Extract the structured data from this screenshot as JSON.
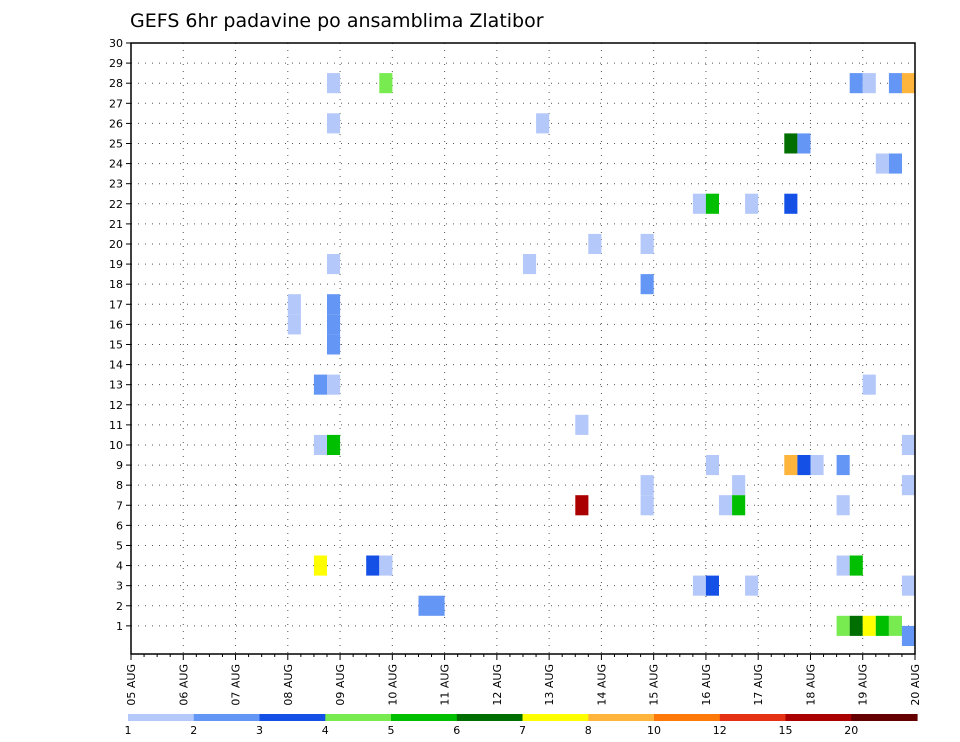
{
  "chart_data": {
    "type": "heatmap",
    "title": "GEFS 6hr padavine po ansamblima Zlatibor",
    "xlabel": "",
    "ylabel": "",
    "x_ticks": [
      "05 AUG",
      "06 AUG",
      "07 AUG",
      "08 AUG",
      "09 AUG",
      "10 AUG",
      "11 AUG",
      "12 AUG",
      "13 AUG",
      "14 AUG",
      "15 AUG",
      "16 AUG",
      "17 AUG",
      "18 AUG",
      "19 AUG",
      "20 AUG"
    ],
    "y_ticks": [
      "1",
      "2",
      "3",
      "4",
      "5",
      "6",
      "7",
      "8",
      "9",
      "10",
      "11",
      "12",
      "13",
      "14",
      "15",
      "16",
      "17",
      "18",
      "19",
      "20",
      "21",
      "22",
      "23",
      "24",
      "25",
      "26",
      "27",
      "28",
      "29",
      "30"
    ],
    "xlim": [
      0,
      60
    ],
    "ylim": [
      0,
      30
    ],
    "grid": true,
    "colorbar": {
      "labels": [
        "1",
        "2",
        "3",
        "4",
        "5",
        "6",
        "7",
        "8",
        "10",
        "12",
        "15",
        "20"
      ],
      "colors": [
        "#b4c8fa",
        "#6496f5",
        "#1450e6",
        "#78eb50",
        "#00be00",
        "#006e00",
        "#ffff00",
        "#ffb43c",
        "#ff780a",
        "#e63214",
        "#aa0000",
        "#640000"
      ]
    },
    "cells": [
      {
        "t": 15.5,
        "m": 28,
        "c": 1
      },
      {
        "t": 19.5,
        "m": 28,
        "c": 4
      },
      {
        "t": 55.5,
        "m": 28,
        "c": 2
      },
      {
        "t": 56.5,
        "m": 28,
        "c": 1
      },
      {
        "t": 58.5,
        "m": 28,
        "c": 2
      },
      {
        "t": 59.5,
        "m": 28,
        "c": 8
      },
      {
        "t": 15.5,
        "m": 26,
        "c": 1
      },
      {
        "t": 31.5,
        "m": 26,
        "c": 1
      },
      {
        "t": 50.5,
        "m": 25,
        "c": 6
      },
      {
        "t": 51.5,
        "m": 25,
        "c": 2
      },
      {
        "t": 57.5,
        "m": 24,
        "c": 1
      },
      {
        "t": 58.5,
        "m": 24,
        "c": 2
      },
      {
        "t": 43.5,
        "m": 22,
        "c": 1
      },
      {
        "t": 44.5,
        "m": 22,
        "c": 5
      },
      {
        "t": 47.5,
        "m": 22,
        "c": 1
      },
      {
        "t": 50.5,
        "m": 22,
        "c": 3
      },
      {
        "t": 35.5,
        "m": 20,
        "c": 1
      },
      {
        "t": 39.5,
        "m": 20,
        "c": 1
      },
      {
        "t": 15.5,
        "m": 19,
        "c": 1
      },
      {
        "t": 30.5,
        "m": 19,
        "c": 1
      },
      {
        "t": 39.5,
        "m": 18,
        "c": 2
      },
      {
        "t": 12.5,
        "m": 17,
        "c": 1
      },
      {
        "t": 15.5,
        "m": 17,
        "c": 2
      },
      {
        "t": 12.5,
        "m": 16,
        "c": 1
      },
      {
        "t": 15.5,
        "m": 16,
        "c": 2
      },
      {
        "t": 15.5,
        "m": 15,
        "c": 2
      },
      {
        "t": 14.5,
        "m": 13,
        "c": 2
      },
      {
        "t": 15.5,
        "m": 13,
        "c": 1
      },
      {
        "t": 56.5,
        "m": 13,
        "c": 1
      },
      {
        "t": 34.5,
        "m": 11,
        "c": 1
      },
      {
        "t": 14.5,
        "m": 10,
        "c": 1
      },
      {
        "t": 15.5,
        "m": 10,
        "c": 5
      },
      {
        "t": 59.5,
        "m": 10,
        "c": 1
      },
      {
        "t": 44.5,
        "m": 9,
        "c": 1
      },
      {
        "t": 50.5,
        "m": 9,
        "c": 8
      },
      {
        "t": 51.5,
        "m": 9,
        "c": 3
      },
      {
        "t": 52.5,
        "m": 9,
        "c": 1
      },
      {
        "t": 54.5,
        "m": 9,
        "c": 2
      },
      {
        "t": 39.5,
        "m": 8,
        "c": 1
      },
      {
        "t": 46.5,
        "m": 8,
        "c": 1
      },
      {
        "t": 59.5,
        "m": 8,
        "c": 1
      },
      {
        "t": 34.5,
        "m": 7,
        "c": 11
      },
      {
        "t": 39.5,
        "m": 7,
        "c": 1
      },
      {
        "t": 45.5,
        "m": 7,
        "c": 1
      },
      {
        "t": 46.5,
        "m": 7,
        "c": 5
      },
      {
        "t": 54.5,
        "m": 7,
        "c": 1
      },
      {
        "t": 14.5,
        "m": 4,
        "c": 7
      },
      {
        "t": 18.5,
        "m": 4,
        "c": 3
      },
      {
        "t": 19.5,
        "m": 4,
        "c": 1
      },
      {
        "t": 54.5,
        "m": 4,
        "c": 1
      },
      {
        "t": 55.5,
        "m": 4,
        "c": 5
      },
      {
        "t": 43.5,
        "m": 3,
        "c": 1
      },
      {
        "t": 44.5,
        "m": 3,
        "c": 3
      },
      {
        "t": 47.5,
        "m": 3,
        "c": 1
      },
      {
        "t": 59.5,
        "m": 3,
        "c": 1
      },
      {
        "t": 22.5,
        "m": 2,
        "c": 2
      },
      {
        "t": 23.5,
        "m": 2,
        "c": 2
      },
      {
        "t": 54.5,
        "m": 1,
        "c": 4
      },
      {
        "t": 55.5,
        "m": 1,
        "c": 6
      },
      {
        "t": 56.5,
        "m": 1,
        "c": 7
      },
      {
        "t": 57.5,
        "m": 1,
        "c": 5
      },
      {
        "t": 58.5,
        "m": 1,
        "c": 4
      },
      {
        "t": 59.5,
        "m": 0.5,
        "c": 2
      }
    ]
  }
}
